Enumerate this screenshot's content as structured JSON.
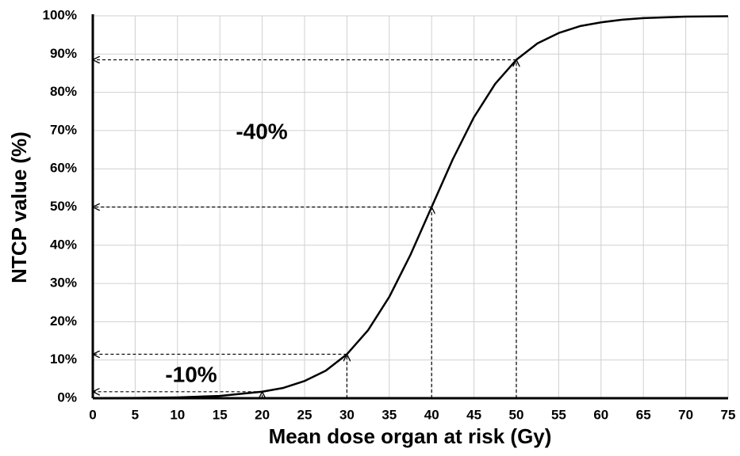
{
  "chart_data": {
    "type": "line",
    "x_label": "Mean dose organ at risk (Gy)",
    "y_label": "NTCP value (%)",
    "x": [
      0,
      5,
      10,
      15,
      20,
      22.5,
      25,
      27.5,
      30,
      32.5,
      35,
      37.5,
      40,
      42.5,
      45,
      47.5,
      50,
      52.5,
      55,
      57.5,
      60,
      62.5,
      65,
      70,
      75
    ],
    "series": [
      {
        "name": "NTCP",
        "color": "#000000",
        "values": [
          0.03,
          0.08,
          0.22,
          0.6,
          1.7,
          2.7,
          4.5,
          7.2,
          11.5,
          17.8,
          26.5,
          37.5,
          50,
          62.5,
          73.5,
          82.2,
          88.5,
          92.8,
          95.5,
          97.3,
          98.3,
          99.0,
          99.4,
          99.8,
          99.9
        ]
      }
    ],
    "guides": [
      {
        "x": 20,
        "y": 1.7
      },
      {
        "x": 30,
        "y": 11.5
      },
      {
        "x": 40,
        "y": 50
      },
      {
        "x": 50,
        "y": 88.5
      }
    ],
    "annotations": [
      "-40%",
      "-10%"
    ],
    "xlim": [
      0,
      75
    ],
    "xticks": [
      0,
      5,
      10,
      15,
      20,
      25,
      30,
      35,
      40,
      45,
      50,
      55,
      60,
      65,
      70,
      75
    ],
    "ylim": [
      0,
      100
    ],
    "yticks": [
      {
        "value": 0,
        "label": "0%"
      },
      {
        "value": 10,
        "label": "10%"
      },
      {
        "value": 20,
        "label": "20%"
      },
      {
        "value": 30,
        "label": "30%"
      },
      {
        "value": 40,
        "label": "40%"
      },
      {
        "value": 50,
        "label": "50%"
      },
      {
        "value": 60,
        "label": "60%"
      },
      {
        "value": 70,
        "label": "70%"
      },
      {
        "value": 80,
        "label": "80%"
      },
      {
        "value": 90,
        "label": "90%"
      },
      {
        "value": 100,
        "label": "100%"
      }
    ],
    "grid": true
  }
}
